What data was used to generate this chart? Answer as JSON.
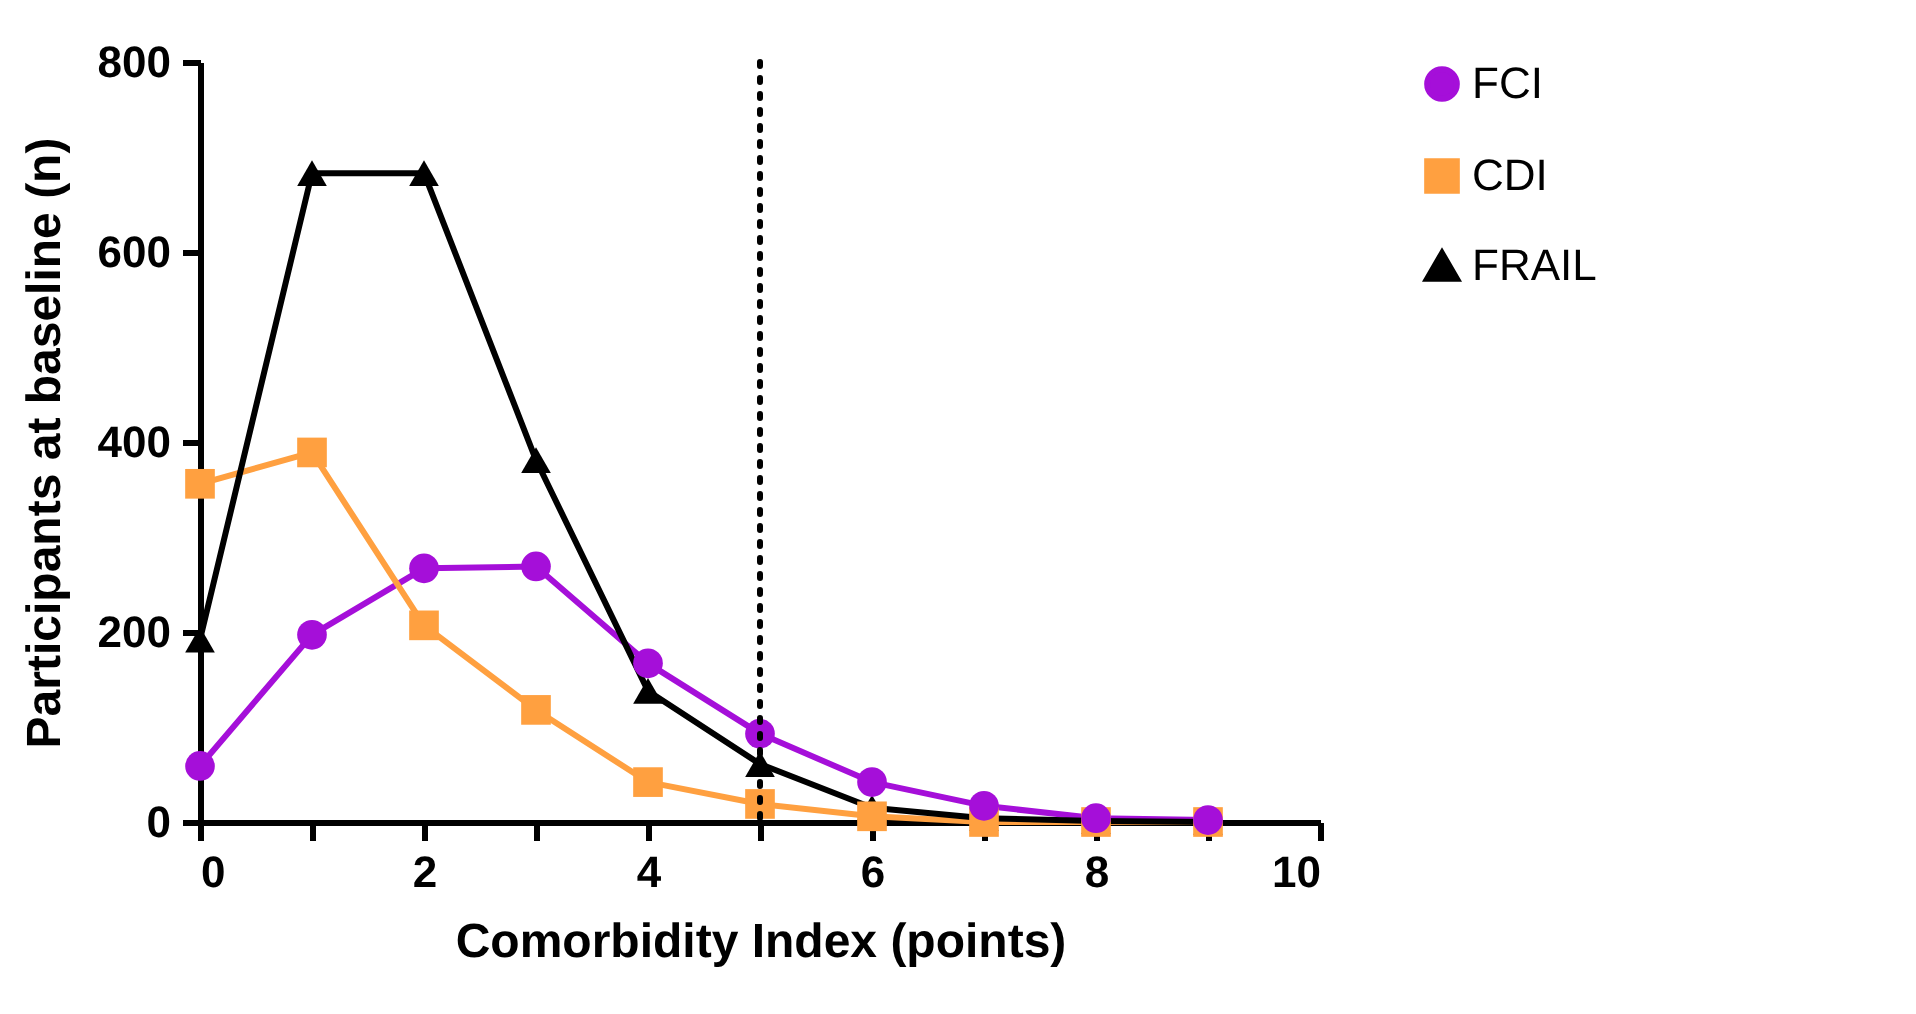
{
  "chart_data": {
    "type": "line",
    "xlabel": "Comorbidity Index (points)",
    "ylabel": "Participants at baseline (n)",
    "x": [
      0,
      1,
      2,
      3,
      4,
      5,
      6,
      7,
      8,
      9
    ],
    "series": [
      {
        "name": "FCI",
        "color": "#a50fd9",
        "marker": "circle",
        "values": [
          59,
          197,
          267,
          269,
          167,
          93,
          42,
          17,
          4,
          2
        ]
      },
      {
        "name": "CDI",
        "color": "#ffa040",
        "marker": "square",
        "values": [
          356,
          389,
          207,
          118,
          42,
          19,
          6,
          0,
          0,
          0
        ]
      },
      {
        "name": "FRAIL",
        "color": "#000000",
        "marker": "triangle",
        "values": [
          192,
          683,
          683,
          381,
          138,
          61,
          15,
          4,
          1,
          0
        ]
      }
    ],
    "xlim": [
      0,
      10
    ],
    "xticks": [
      0,
      {
        "value": 1,
        "label": null
      },
      2,
      {
        "value": 3,
        "label": null
      },
      4,
      {
        "value": 5,
        "label": null
      },
      6,
      {
        "value": 7,
        "label": null
      },
      8,
      {
        "value": 9,
        "label": null
      },
      10
    ],
    "ylim": [
      0,
      800
    ],
    "yticks": [
      0,
      200,
      400,
      600,
      800
    ],
    "ref_lines": [
      {
        "axis": "x",
        "value": 5,
        "line_style": "dotted",
        "color": "#000000"
      }
    ],
    "grid": false,
    "legend": "top right",
    "line_style": "solid"
  }
}
